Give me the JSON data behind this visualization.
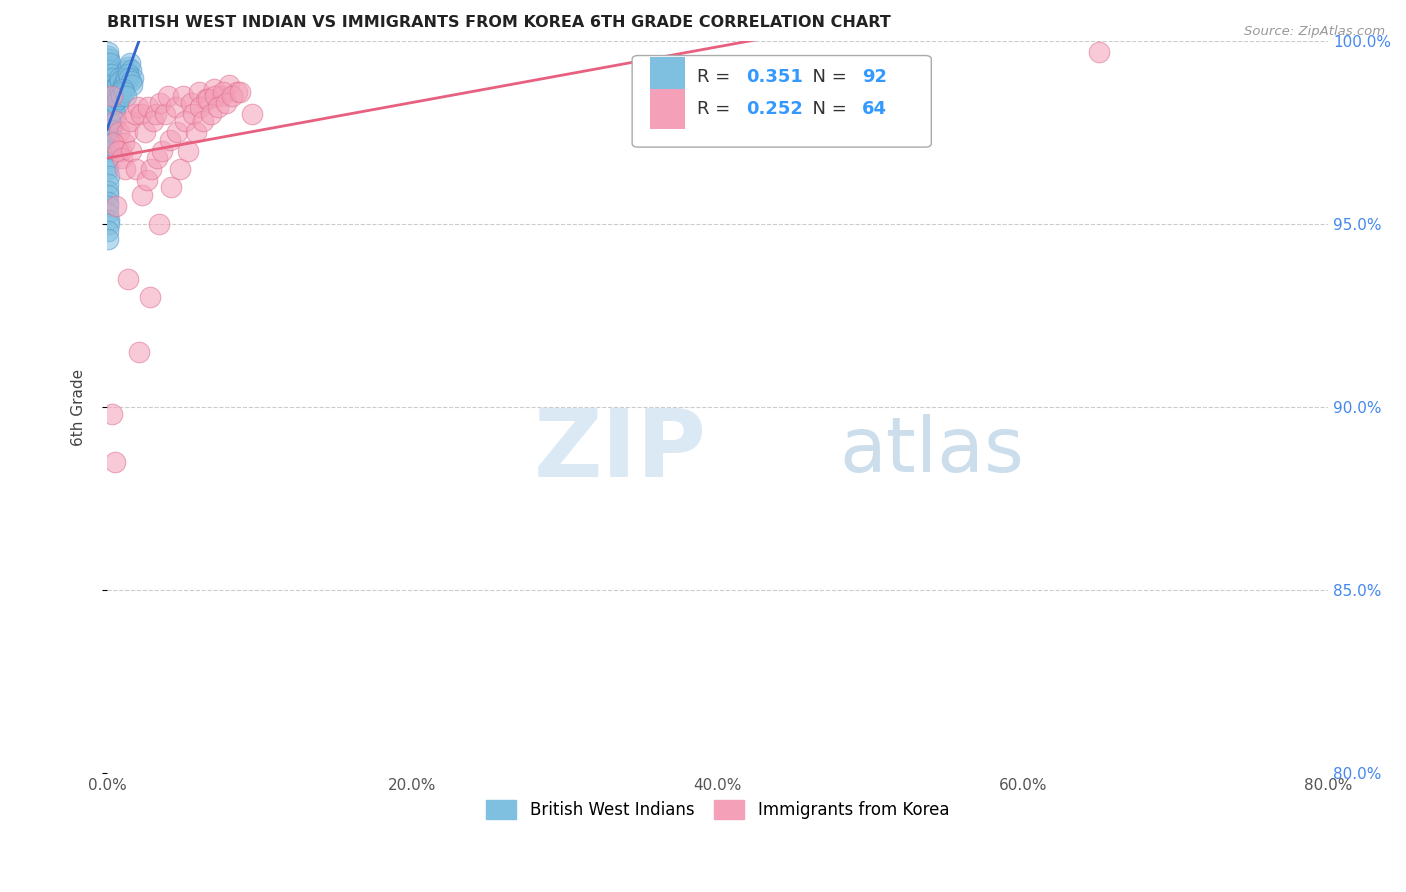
{
  "title": "BRITISH WEST INDIAN VS IMMIGRANTS FROM KOREA 6TH GRADE CORRELATION CHART",
  "source": "Source: ZipAtlas.com",
  "xlabel_vals": [
    0.0,
    20.0,
    40.0,
    60.0,
    80.0
  ],
  "ylabel_vals": [
    80.0,
    85.0,
    90.0,
    95.0,
    100.0
  ],
  "ylabel_label": "6th Grade",
  "xlim": [
    0.0,
    80.0
  ],
  "ylim": [
    80.0,
    100.0
  ],
  "blue_R": 0.351,
  "blue_N": 92,
  "pink_R": 0.252,
  "pink_N": 64,
  "blue_color": "#7fbfdf",
  "pink_color": "#f4a0b8",
  "blue_line_color": "#3366cc",
  "pink_line_color": "#e86080",
  "blue_edge_color": "#5599cc",
  "pink_edge_color": "#e07090",
  "legend_label_blue": "British West Indians",
  "legend_label_pink": "Immigrants from Korea",
  "blue_x": [
    0.05,
    0.08,
    0.1,
    0.12,
    0.05,
    0.07,
    0.15,
    0.18,
    0.2,
    0.1,
    0.03,
    0.06,
    0.08,
    0.04,
    0.05,
    0.09,
    0.11,
    0.13,
    0.06,
    0.08,
    0.1,
    0.12,
    0.15,
    0.07,
    0.09,
    0.05,
    0.06,
    0.04,
    0.08,
    0.1,
    0.03,
    0.05,
    0.07,
    0.04,
    0.06,
    0.08,
    0.1,
    0.12,
    0.05,
    0.07,
    0.15,
    0.2,
    0.25,
    0.3,
    0.35,
    0.4,
    0.45,
    0.5,
    0.6,
    0.7,
    0.8,
    0.9,
    1.0,
    1.1,
    1.2,
    1.3,
    1.4,
    1.5,
    1.6,
    1.7,
    0.22,
    0.28,
    0.32,
    0.38,
    0.42,
    0.48,
    0.55,
    0.65,
    0.75,
    0.85,
    0.95,
    1.05,
    1.15,
    1.25,
    1.35,
    1.45,
    1.55,
    1.65,
    0.17,
    0.23,
    0.27,
    0.33,
    0.37,
    0.43,
    0.53,
    0.63,
    0.73,
    0.83,
    0.93,
    1.03,
    1.13,
    1.23
  ],
  "blue_y": [
    99.6,
    99.4,
    99.5,
    99.3,
    99.7,
    99.2,
    99.0,
    98.8,
    98.9,
    99.1,
    98.5,
    98.3,
    98.6,
    98.7,
    98.4,
    98.2,
    98.0,
    97.8,
    97.9,
    97.6,
    97.5,
    97.3,
    97.1,
    97.4,
    97.2,
    97.0,
    96.8,
    96.6,
    96.5,
    96.3,
    96.1,
    95.9,
    95.8,
    95.6,
    95.5,
    95.3,
    95.1,
    95.0,
    94.8,
    94.6,
    99.2,
    99.4,
    99.1,
    98.8,
    99.0,
    98.7,
    98.5,
    98.6,
    98.4,
    98.3,
    98.5,
    98.7,
    98.9,
    99.0,
    99.1,
    99.2,
    99.3,
    99.4,
    99.2,
    99.0,
    98.8,
    98.6,
    98.4,
    98.7,
    98.5,
    98.3,
    98.6,
    98.8,
    99.0,
    98.9,
    98.7,
    98.8,
    98.9,
    99.0,
    99.1,
    99.0,
    98.9,
    98.8,
    97.8,
    97.6,
    97.5,
    97.7,
    97.9,
    98.1,
    98.3,
    98.5,
    98.4,
    98.6,
    98.5,
    98.7,
    98.6,
    98.5
  ],
  "pink_x": [
    0.3,
    0.5,
    0.8,
    0.9,
    1.1,
    1.3,
    1.5,
    1.8,
    2.0,
    2.2,
    2.5,
    2.7,
    3.0,
    3.2,
    3.5,
    3.8,
    4.0,
    4.5,
    5.0,
    5.5,
    6.0,
    6.5,
    7.0,
    7.5,
    8.0,
    8.5,
    0.4,
    0.7,
    1.0,
    1.2,
    1.6,
    1.9,
    2.3,
    2.6,
    2.9,
    3.3,
    3.6,
    4.1,
    4.6,
    5.1,
    5.6,
    6.1,
    6.6,
    7.1,
    7.6,
    0.6,
    1.4,
    2.1,
    2.8,
    3.4,
    4.2,
    4.8,
    5.3,
    5.8,
    6.3,
    6.8,
    7.3,
    7.8,
    8.2,
    8.7,
    0.35,
    0.55,
    9.5,
    65.0
  ],
  "pink_y": [
    98.5,
    97.8,
    97.5,
    97.0,
    97.2,
    97.5,
    97.8,
    98.0,
    98.2,
    98.0,
    97.5,
    98.2,
    97.8,
    98.0,
    98.3,
    98.0,
    98.5,
    98.2,
    98.5,
    98.3,
    98.6,
    98.4,
    98.7,
    98.5,
    98.8,
    98.6,
    97.2,
    97.0,
    96.8,
    96.5,
    97.0,
    96.5,
    95.8,
    96.2,
    96.5,
    96.8,
    97.0,
    97.3,
    97.5,
    97.8,
    98.0,
    98.2,
    98.4,
    98.5,
    98.6,
    95.5,
    93.5,
    91.5,
    93.0,
    95.0,
    96.0,
    96.5,
    97.0,
    97.5,
    97.8,
    98.0,
    98.2,
    98.3,
    98.5,
    98.6,
    89.8,
    88.5,
    98.0,
    99.7
  ]
}
